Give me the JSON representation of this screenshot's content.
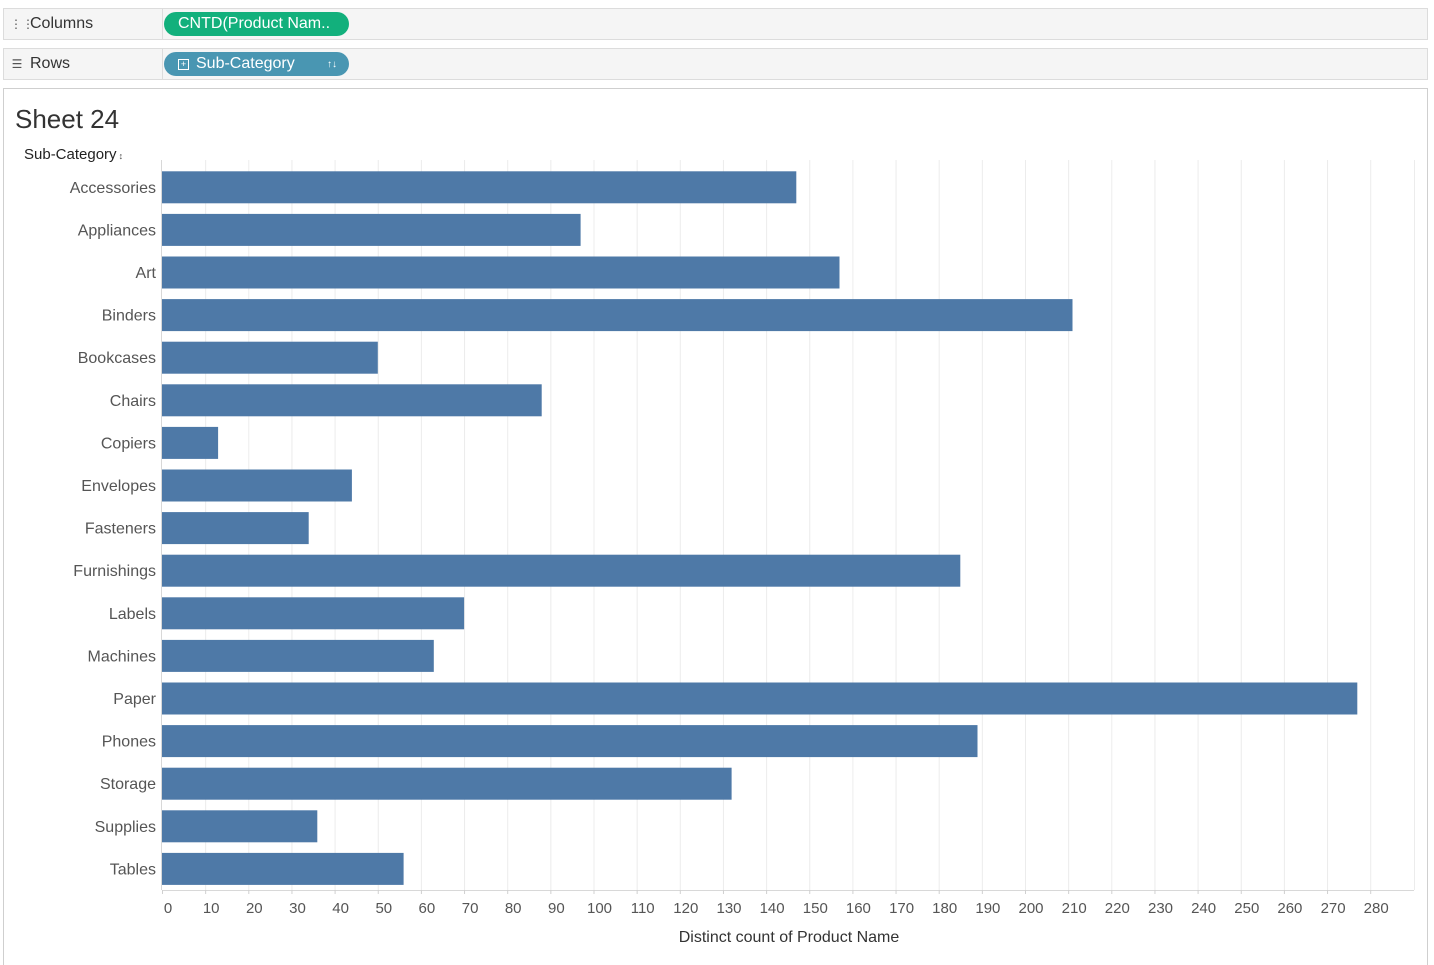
{
  "shelves": {
    "columns": {
      "label": "Columns",
      "icon": "columns-icon",
      "pill": "CNTD(Product Nam..",
      "pill_color": "#12b07c"
    },
    "rows": {
      "label": "Rows",
      "icon": "rows-icon",
      "pill": "Sub-Category",
      "pill_color": "#4996b2"
    }
  },
  "sheet": {
    "title": "Sheet 24",
    "row_header": "Sub-Category"
  },
  "chart_data": {
    "type": "bar",
    "orientation": "horizontal",
    "categories": [
      "Accessories",
      "Appliances",
      "Art",
      "Binders",
      "Bookcases",
      "Chairs",
      "Copiers",
      "Envelopes",
      "Fasteners",
      "Furnishings",
      "Labels",
      "Machines",
      "Paper",
      "Phones",
      "Storage",
      "Supplies",
      "Tables"
    ],
    "values": [
      147,
      97,
      157,
      211,
      50,
      88,
      13,
      44,
      34,
      185,
      70,
      63,
      277,
      189,
      132,
      36,
      56
    ],
    "xlabel": "Distinct count of Product Name",
    "ylabel": "Sub-Category",
    "xlim": [
      0,
      290
    ],
    "xticks": [
      0,
      10,
      20,
      30,
      40,
      50,
      60,
      70,
      80,
      90,
      100,
      110,
      120,
      130,
      140,
      150,
      160,
      170,
      180,
      190,
      200,
      210,
      220,
      230,
      240,
      250,
      260,
      270,
      280
    ],
    "grid": true,
    "bar_color": "#4e79a7"
  }
}
